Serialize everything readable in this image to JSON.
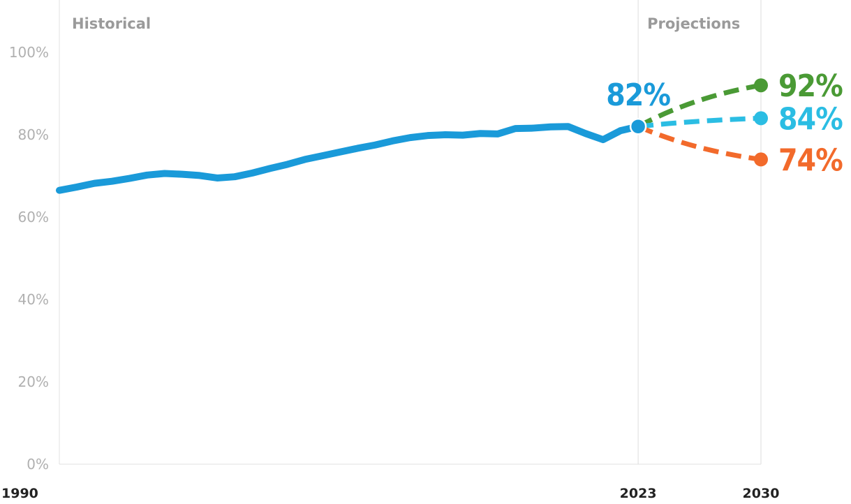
{
  "chart_data": {
    "type": "line",
    "title": "",
    "xlabel": "",
    "ylabel": "",
    "xlim": [
      1990,
      2030
    ],
    "ylim": [
      0,
      100
    ],
    "grid": false,
    "y_ticks": [
      "0%",
      "20%",
      "40%",
      "60%",
      "80%",
      "100%"
    ],
    "x_ticks": [
      {
        "value": 1990,
        "label": "1990"
      },
      {
        "value": 2023,
        "label": "2023"
      },
      {
        "value": 2030,
        "label": "2030"
      }
    ],
    "regions": [
      {
        "label": "Historical",
        "from": 1990,
        "to": 2023
      },
      {
        "label": "Projections",
        "from": 2023,
        "to": 2030
      }
    ],
    "historical": {
      "color": "#1a9ad9",
      "x": [
        1990,
        1991,
        1992,
        1993,
        1994,
        1995,
        1996,
        1997,
        1998,
        1999,
        2000,
        2001,
        2002,
        2003,
        2004,
        2005,
        2006,
        2007,
        2008,
        2009,
        2010,
        2011,
        2012,
        2013,
        2014,
        2015,
        2016,
        2017,
        2018,
        2019,
        2020,
        2021,
        2022,
        2023
      ],
      "y": [
        66.5,
        67.3,
        68.2,
        68.7,
        69.4,
        70.2,
        70.6,
        70.4,
        70.1,
        69.5,
        69.8,
        70.7,
        71.8,
        72.8,
        74.0,
        74.9,
        75.8,
        76.7,
        77.5,
        78.5,
        79.3,
        79.8,
        80.0,
        79.9,
        80.3,
        80.2,
        81.5,
        81.6,
        81.9,
        82.0,
        80.3,
        78.8,
        81.0,
        82.0
      ],
      "end_label": "82%"
    },
    "projections": [
      {
        "color": "#4a9a35",
        "x": [
          2023,
          2030
        ],
        "y": [
          82,
          92
        ],
        "label": "92%"
      },
      {
        "color": "#2bbde3",
        "x": [
          2023,
          2030
        ],
        "y": [
          82,
          84
        ],
        "label": "84%"
      },
      {
        "color": "#f26a2b",
        "x": [
          2023,
          2030
        ],
        "y": [
          82,
          74
        ],
        "label": "74%"
      }
    ]
  }
}
